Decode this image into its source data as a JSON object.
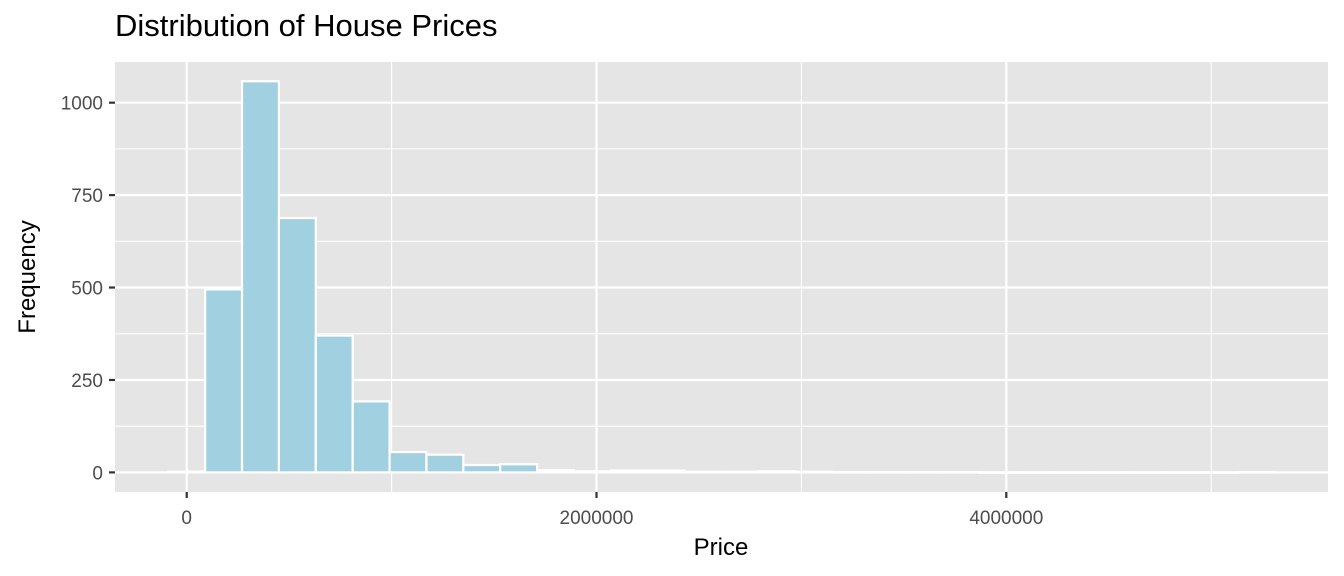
{
  "chart_data": {
    "type": "bar",
    "title": "Distribution of House Prices",
    "xlabel": "Price",
    "ylabel": "Frequency",
    "bin_width": 180000,
    "bins": [
      {
        "x0": -90000,
        "x1": 90000,
        "value": 2
      },
      {
        "x0": 90000,
        "x1": 270000,
        "value": 495
      },
      {
        "x0": 270000,
        "x1": 450000,
        "value": 1058
      },
      {
        "x0": 450000,
        "x1": 630000,
        "value": 688
      },
      {
        "x0": 630000,
        "x1": 810000,
        "value": 370
      },
      {
        "x0": 810000,
        "x1": 990000,
        "value": 192
      },
      {
        "x0": 990000,
        "x1": 1170000,
        "value": 55
      },
      {
        "x0": 1170000,
        "x1": 1350000,
        "value": 48
      },
      {
        "x0": 1350000,
        "x1": 1530000,
        "value": 20
      },
      {
        "x0": 1530000,
        "x1": 1710000,
        "value": 22
      },
      {
        "x0": 1710000,
        "x1": 1890000,
        "value": 6
      },
      {
        "x0": 1890000,
        "x1": 2070000,
        "value": 3
      },
      {
        "x0": 2070000,
        "x1": 2250000,
        "value": 5
      },
      {
        "x0": 2250000,
        "x1": 2430000,
        "value": 5
      },
      {
        "x0": 2430000,
        "x1": 2610000,
        "value": 2
      },
      {
        "x0": 2610000,
        "x1": 2790000,
        "value": 2
      },
      {
        "x0": 2790000,
        "x1": 2970000,
        "value": 3
      },
      {
        "x0": 2970000,
        "x1": 3150000,
        "value": 2
      },
      {
        "x0": 3150000,
        "x1": 3330000,
        "value": 1
      },
      {
        "x0": 3330000,
        "x1": 3510000,
        "value": 1
      },
      {
        "x0": 3510000,
        "x1": 3690000,
        "value": 1
      },
      {
        "x0": 3690000,
        "x1": 3870000,
        "value": 1
      },
      {
        "x0": 3870000,
        "x1": 4050000,
        "value": 0
      },
      {
        "x0": 4050000,
        "x1": 4230000,
        "value": 0
      },
      {
        "x0": 4230000,
        "x1": 4410000,
        "value": 0
      },
      {
        "x0": 4410000,
        "x1": 4590000,
        "value": 0
      },
      {
        "x0": 4590000,
        "x1": 4770000,
        "value": 0
      },
      {
        "x0": 4770000,
        "x1": 4950000,
        "value": 0
      },
      {
        "x0": 4950000,
        "x1": 5130000,
        "value": 0
      },
      {
        "x0": 5130000,
        "x1": 5310000,
        "value": 1
      }
    ],
    "xlim": [
      -350000,
      5570000
    ],
    "ylim": [
      -53,
      1110
    ],
    "x_ticks": [
      0,
      2000000,
      4000000
    ],
    "x_tick_labels": [
      "0",
      "2000000",
      "4000000"
    ],
    "y_ticks": [
      0,
      250,
      500,
      750,
      1000
    ],
    "y_tick_labels": [
      "0",
      "250",
      "500",
      "750",
      "1000"
    ],
    "grid": true,
    "bar_fill": "#a1d0e0",
    "bar_stroke": "#ffffff",
    "panel_background": "#e5e5e5",
    "grid_color": "#ffffff"
  }
}
